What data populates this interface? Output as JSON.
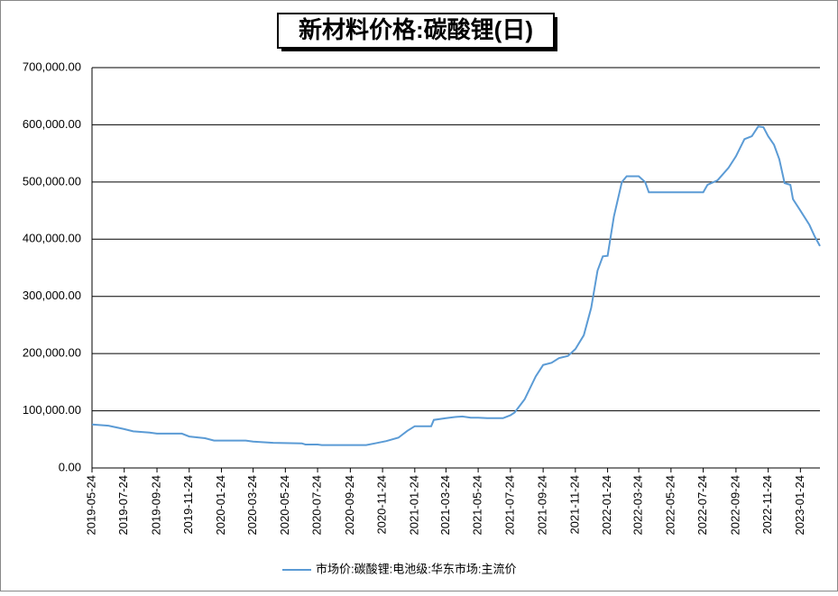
{
  "chart_data": {
    "type": "line",
    "title": "新材料价格:碳酸锂(日)",
    "x": [
      "2019-05-24",
      "2019-06-24",
      "2019-07-24",
      "2019-08-10",
      "2019-09-10",
      "2019-09-24",
      "2019-11-10",
      "2019-11-24",
      "2019-12-24",
      "2020-01-10",
      "2020-03-10",
      "2020-03-24",
      "2020-05-01",
      "2020-06-24",
      "2020-07-01",
      "2020-07-24",
      "2020-08-01",
      "2020-10-24",
      "2020-11-10",
      "2020-12-01",
      "2020-12-24",
      "2021-01-10",
      "2021-01-24",
      "2021-02-24",
      "2021-03-01",
      "2021-03-24",
      "2021-04-10",
      "2021-04-24",
      "2021-05-10",
      "2021-05-24",
      "2021-06-10",
      "2021-07-10",
      "2021-07-24",
      "2021-08-01",
      "2021-08-20",
      "2021-09-10",
      "2021-09-24",
      "2021-10-10",
      "2021-10-24",
      "2021-11-10",
      "2021-11-24",
      "2021-12-10",
      "2021-12-24",
      "2022-01-05",
      "2022-01-15",
      "2022-01-24",
      "2022-02-05",
      "2022-02-20",
      "2022-03-01",
      "2022-03-24",
      "2022-04-05",
      "2022-04-12",
      "2022-05-24",
      "2022-07-24",
      "2022-08-01",
      "2022-08-20",
      "2022-09-10",
      "2022-09-24",
      "2022-10-10",
      "2022-10-24",
      "2022-11-05",
      "2022-11-15",
      "2022-11-24",
      "2022-12-05",
      "2022-12-15",
      "2022-12-25",
      "2023-01-05",
      "2023-01-10",
      "2023-01-24",
      "2023-02-10",
      "2023-02-20",
      "2023-03-02"
    ],
    "series": [
      {
        "name": "市场价:碳酸锂:电池级:华东市场:主流价",
        "color": "#5b9bd5",
        "values": [
          76000,
          74000,
          68000,
          64000,
          62000,
          60000,
          60000,
          55000,
          52000,
          48000,
          48000,
          46000,
          44000,
          43000,
          41000,
          41000,
          40000,
          40000,
          43000,
          47000,
          53000,
          65000,
          73000,
          73000,
          84000,
          87000,
          89000,
          90000,
          88000,
          88000,
          87000,
          87000,
          92000,
          97000,
          120000,
          160000,
          180000,
          184000,
          192000,
          196000,
          208000,
          232000,
          280000,
          345000,
          370000,
          371000,
          440000,
          500000,
          510000,
          510000,
          500000,
          482000,
          482000,
          482000,
          495000,
          503000,
          525000,
          545000,
          575000,
          580000,
          597000,
          596000,
          580000,
          565000,
          540000,
          498000,
          495000,
          470000,
          450000,
          425000,
          405000,
          388000
        ]
      }
    ],
    "xlim": [
      "2019-05-24",
      "2023-03-02"
    ],
    "xticks": [
      "2019-05-24",
      "2019-07-24",
      "2019-09-24",
      "2019-11-24",
      "2020-01-24",
      "2020-03-24",
      "2020-05-24",
      "2020-07-24",
      "2020-09-24",
      "2020-11-24",
      "2021-01-24",
      "2021-03-24",
      "2021-05-24",
      "2021-07-24",
      "2021-09-24",
      "2021-11-24",
      "2022-01-24",
      "2022-03-24",
      "2022-05-24",
      "2022-07-24",
      "2022-09-24",
      "2022-11-24",
      "2023-01-24"
    ],
    "ylim": [
      0,
      700000
    ],
    "yticks": [
      {
        "value": 0,
        "label": "0.00"
      },
      {
        "value": 100000,
        "label": "100,000.00"
      },
      {
        "value": 200000,
        "label": "200,000.00"
      },
      {
        "value": 300000,
        "label": "300,000.00"
      },
      {
        "value": 400000,
        "label": "400,000.00"
      },
      {
        "value": 500000,
        "label": "500,000.00"
      },
      {
        "value": 600000,
        "label": "600,000.00"
      },
      {
        "value": 700000,
        "label": "700,000.00"
      }
    ],
    "grid": true
  }
}
